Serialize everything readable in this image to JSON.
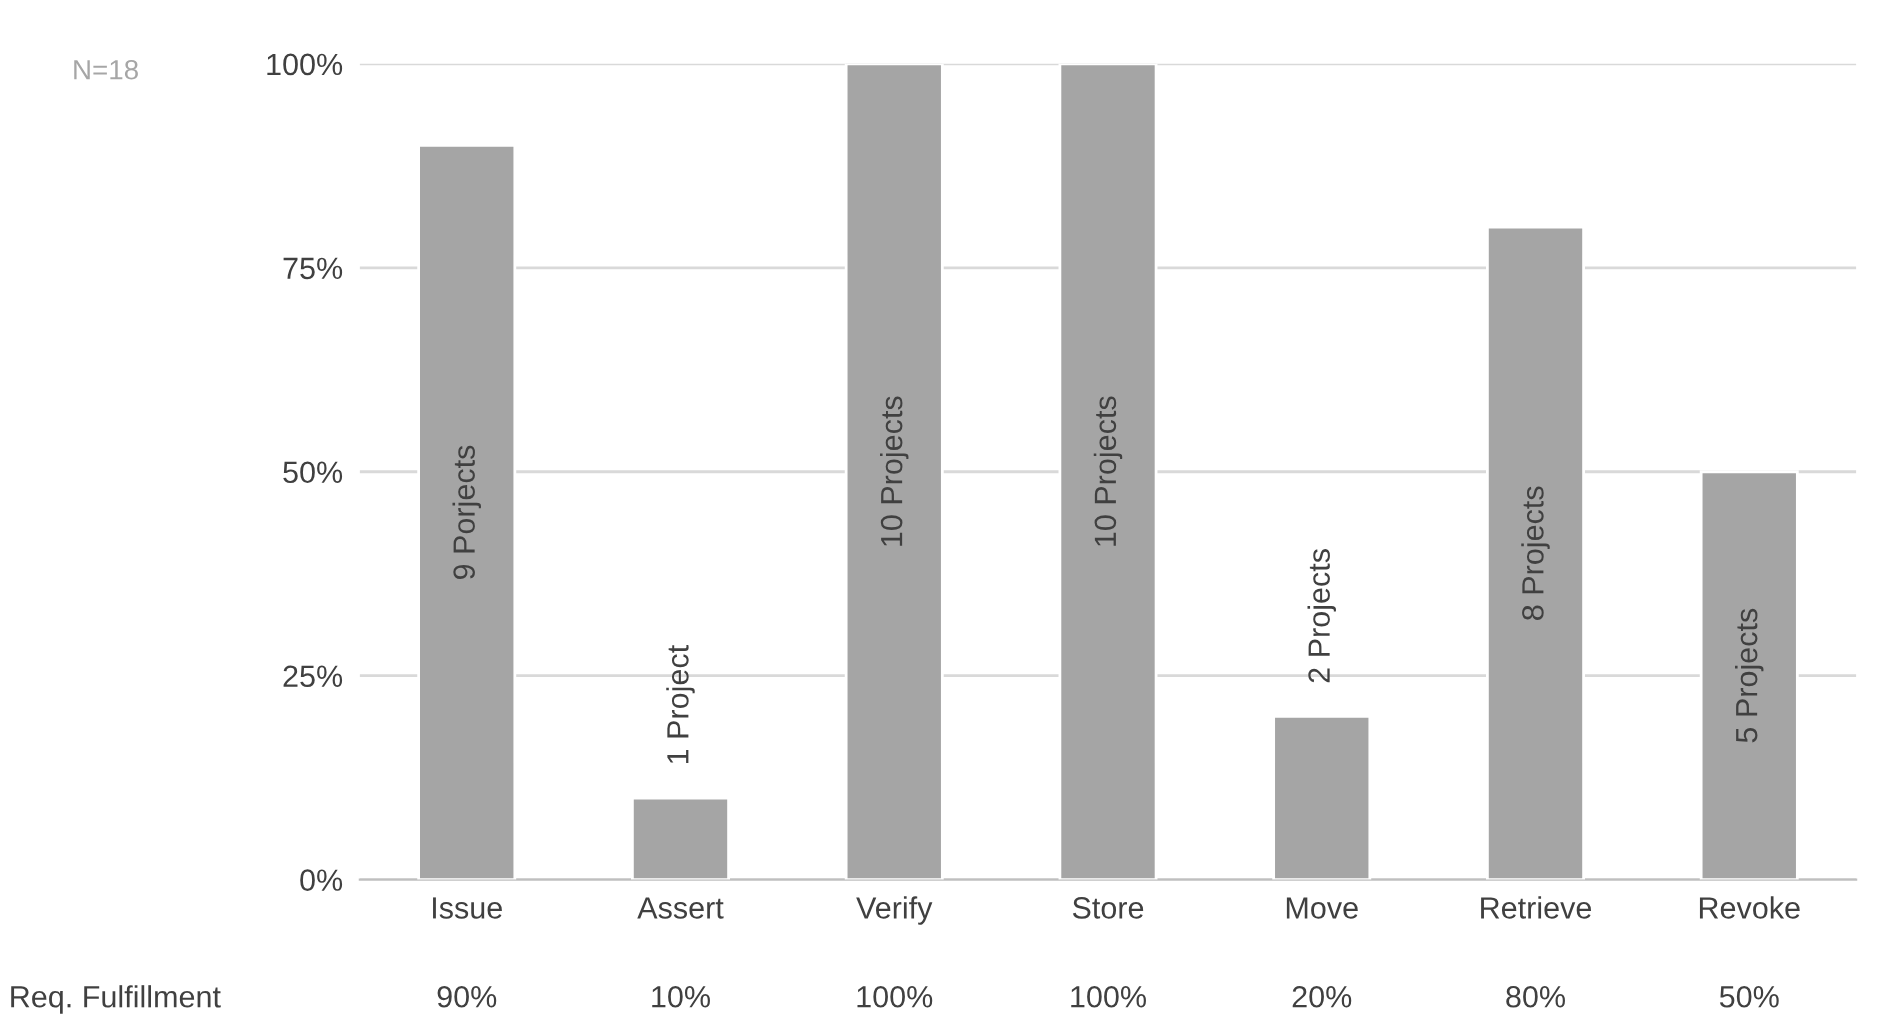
{
  "chart_data": {
    "type": "bar",
    "categories": [
      "Issue",
      "Assert",
      "Verify",
      "Store",
      "Move",
      "Retrieve",
      "Revoke"
    ],
    "values": [
      90,
      10,
      100,
      100,
      20,
      80,
      50
    ],
    "value_labels": [
      "90%",
      "10%",
      "100%",
      "100%",
      "20%",
      "80%",
      "50%"
    ],
    "color": "#a5a5a5",
    "ylim": [
      0,
      100
    ],
    "yticks": [
      {
        "value": 0,
        "label": "0%"
      },
      {
        "value": 25,
        "label": "25%"
      },
      {
        "value": 50,
        "label": "50%"
      },
      {
        "value": 75,
        "label": "75%"
      },
      {
        "value": 100,
        "label": "100%"
      }
    ],
    "grid": "y",
    "annotations": [
      "N=18",
      "Req. Fulfillment",
      "9 Porjects",
      "1 Project",
      "10 Projects",
      "10 Projects",
      "2 Projects",
      "8 Projects",
      "5 Projects"
    ]
  }
}
